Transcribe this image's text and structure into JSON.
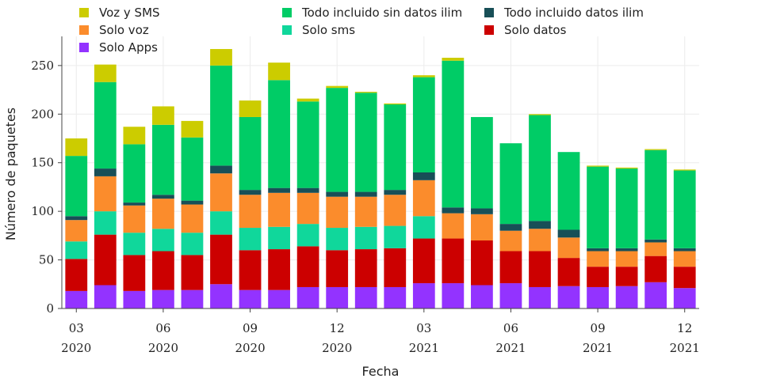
{
  "chart_data": {
    "type": "bar",
    "stacked": true,
    "xlabel": "Fecha",
    "ylabel": "Número de paquetes",
    "ylim": [
      0,
      280
    ],
    "yticks": [
      0,
      50,
      100,
      150,
      200,
      250
    ],
    "grid": true,
    "legend_position": "top",
    "x_tick_labels": [
      {
        "month": "03",
        "year": "2020"
      },
      {
        "month": "06",
        "year": "2020"
      },
      {
        "month": "09",
        "year": "2020"
      },
      {
        "month": "12",
        "year": "2020"
      },
      {
        "month": "03",
        "year": "2021"
      },
      {
        "month": "06",
        "year": "2021"
      },
      {
        "month": "09",
        "year": "2021"
      },
      {
        "month": "12",
        "year": "2021"
      }
    ],
    "categories": [
      "2020-03",
      "2020-04",
      "2020-05",
      "2020-06",
      "2020-07",
      "2020-08",
      "2020-09",
      "2020-10",
      "2020-11",
      "2020-12",
      "2021-01",
      "2021-02",
      "2021-03",
      "2021-04",
      "2021-05",
      "2021-06",
      "2021-07",
      "2021-08",
      "2021-09",
      "2021-10",
      "2021-11",
      "2021-12"
    ],
    "series": [
      {
        "name": "Solo Apps",
        "color": "#9333ff",
        "values": [
          18,
          24,
          18,
          19,
          19,
          25,
          19,
          19,
          22,
          22,
          22,
          22,
          26,
          26,
          24,
          26,
          22,
          23,
          22,
          23,
          27,
          21
        ]
      },
      {
        "name": "Solo datos",
        "color": "#cc0000",
        "values": [
          33,
          52,
          37,
          40,
          36,
          51,
          41,
          42,
          42,
          38,
          39,
          40,
          46,
          46,
          46,
          33,
          37,
          29,
          21,
          20,
          27,
          22
        ]
      },
      {
        "name": "Solo sms",
        "color": "#10d79b",
        "values": [
          18,
          24,
          23,
          23,
          23,
          24,
          23,
          23,
          23,
          23,
          23,
          23,
          23,
          0,
          0,
          0,
          0,
          0,
          0,
          0,
          0,
          0
        ]
      },
      {
        "name": "Solo voz",
        "color": "#fb8c2c",
        "values": [
          22,
          36,
          28,
          31,
          29,
          39,
          34,
          35,
          32,
          32,
          31,
          32,
          37,
          26,
          27,
          21,
          23,
          21,
          16,
          16,
          14,
          16
        ]
      },
      {
        "name": "Todo incluido datos ilim",
        "color": "#184f57",
        "values": [
          4,
          8,
          3,
          4,
          4,
          8,
          5,
          5,
          5,
          5,
          5,
          5,
          8,
          6,
          6,
          7,
          8,
          8,
          3,
          3,
          3,
          3
        ]
      },
      {
        "name": "Todo incluido sin datos ilim",
        "color": "#00cc66",
        "values": [
          62,
          89,
          60,
          72,
          65,
          103,
          75,
          111,
          89,
          107,
          102,
          88,
          98,
          151,
          94,
          83,
          109,
          80,
          84,
          82,
          92,
          80
        ]
      },
      {
        "name": "Voz y SMS",
        "color": "#cccc00",
        "values": [
          18,
          18,
          18,
          19,
          17,
          17,
          17,
          18,
          3,
          2,
          1,
          1,
          2,
          3,
          0,
          0,
          1,
          0,
          1,
          1,
          1,
          1
        ]
      }
    ],
    "legend_rows": [
      [
        "Voz y SMS",
        "Todo incluido sin datos ilim",
        "Todo incluido datos ilim"
      ],
      [
        "Solo voz",
        "Solo sms",
        "Solo datos"
      ],
      [
        "Solo Apps"
      ]
    ]
  }
}
